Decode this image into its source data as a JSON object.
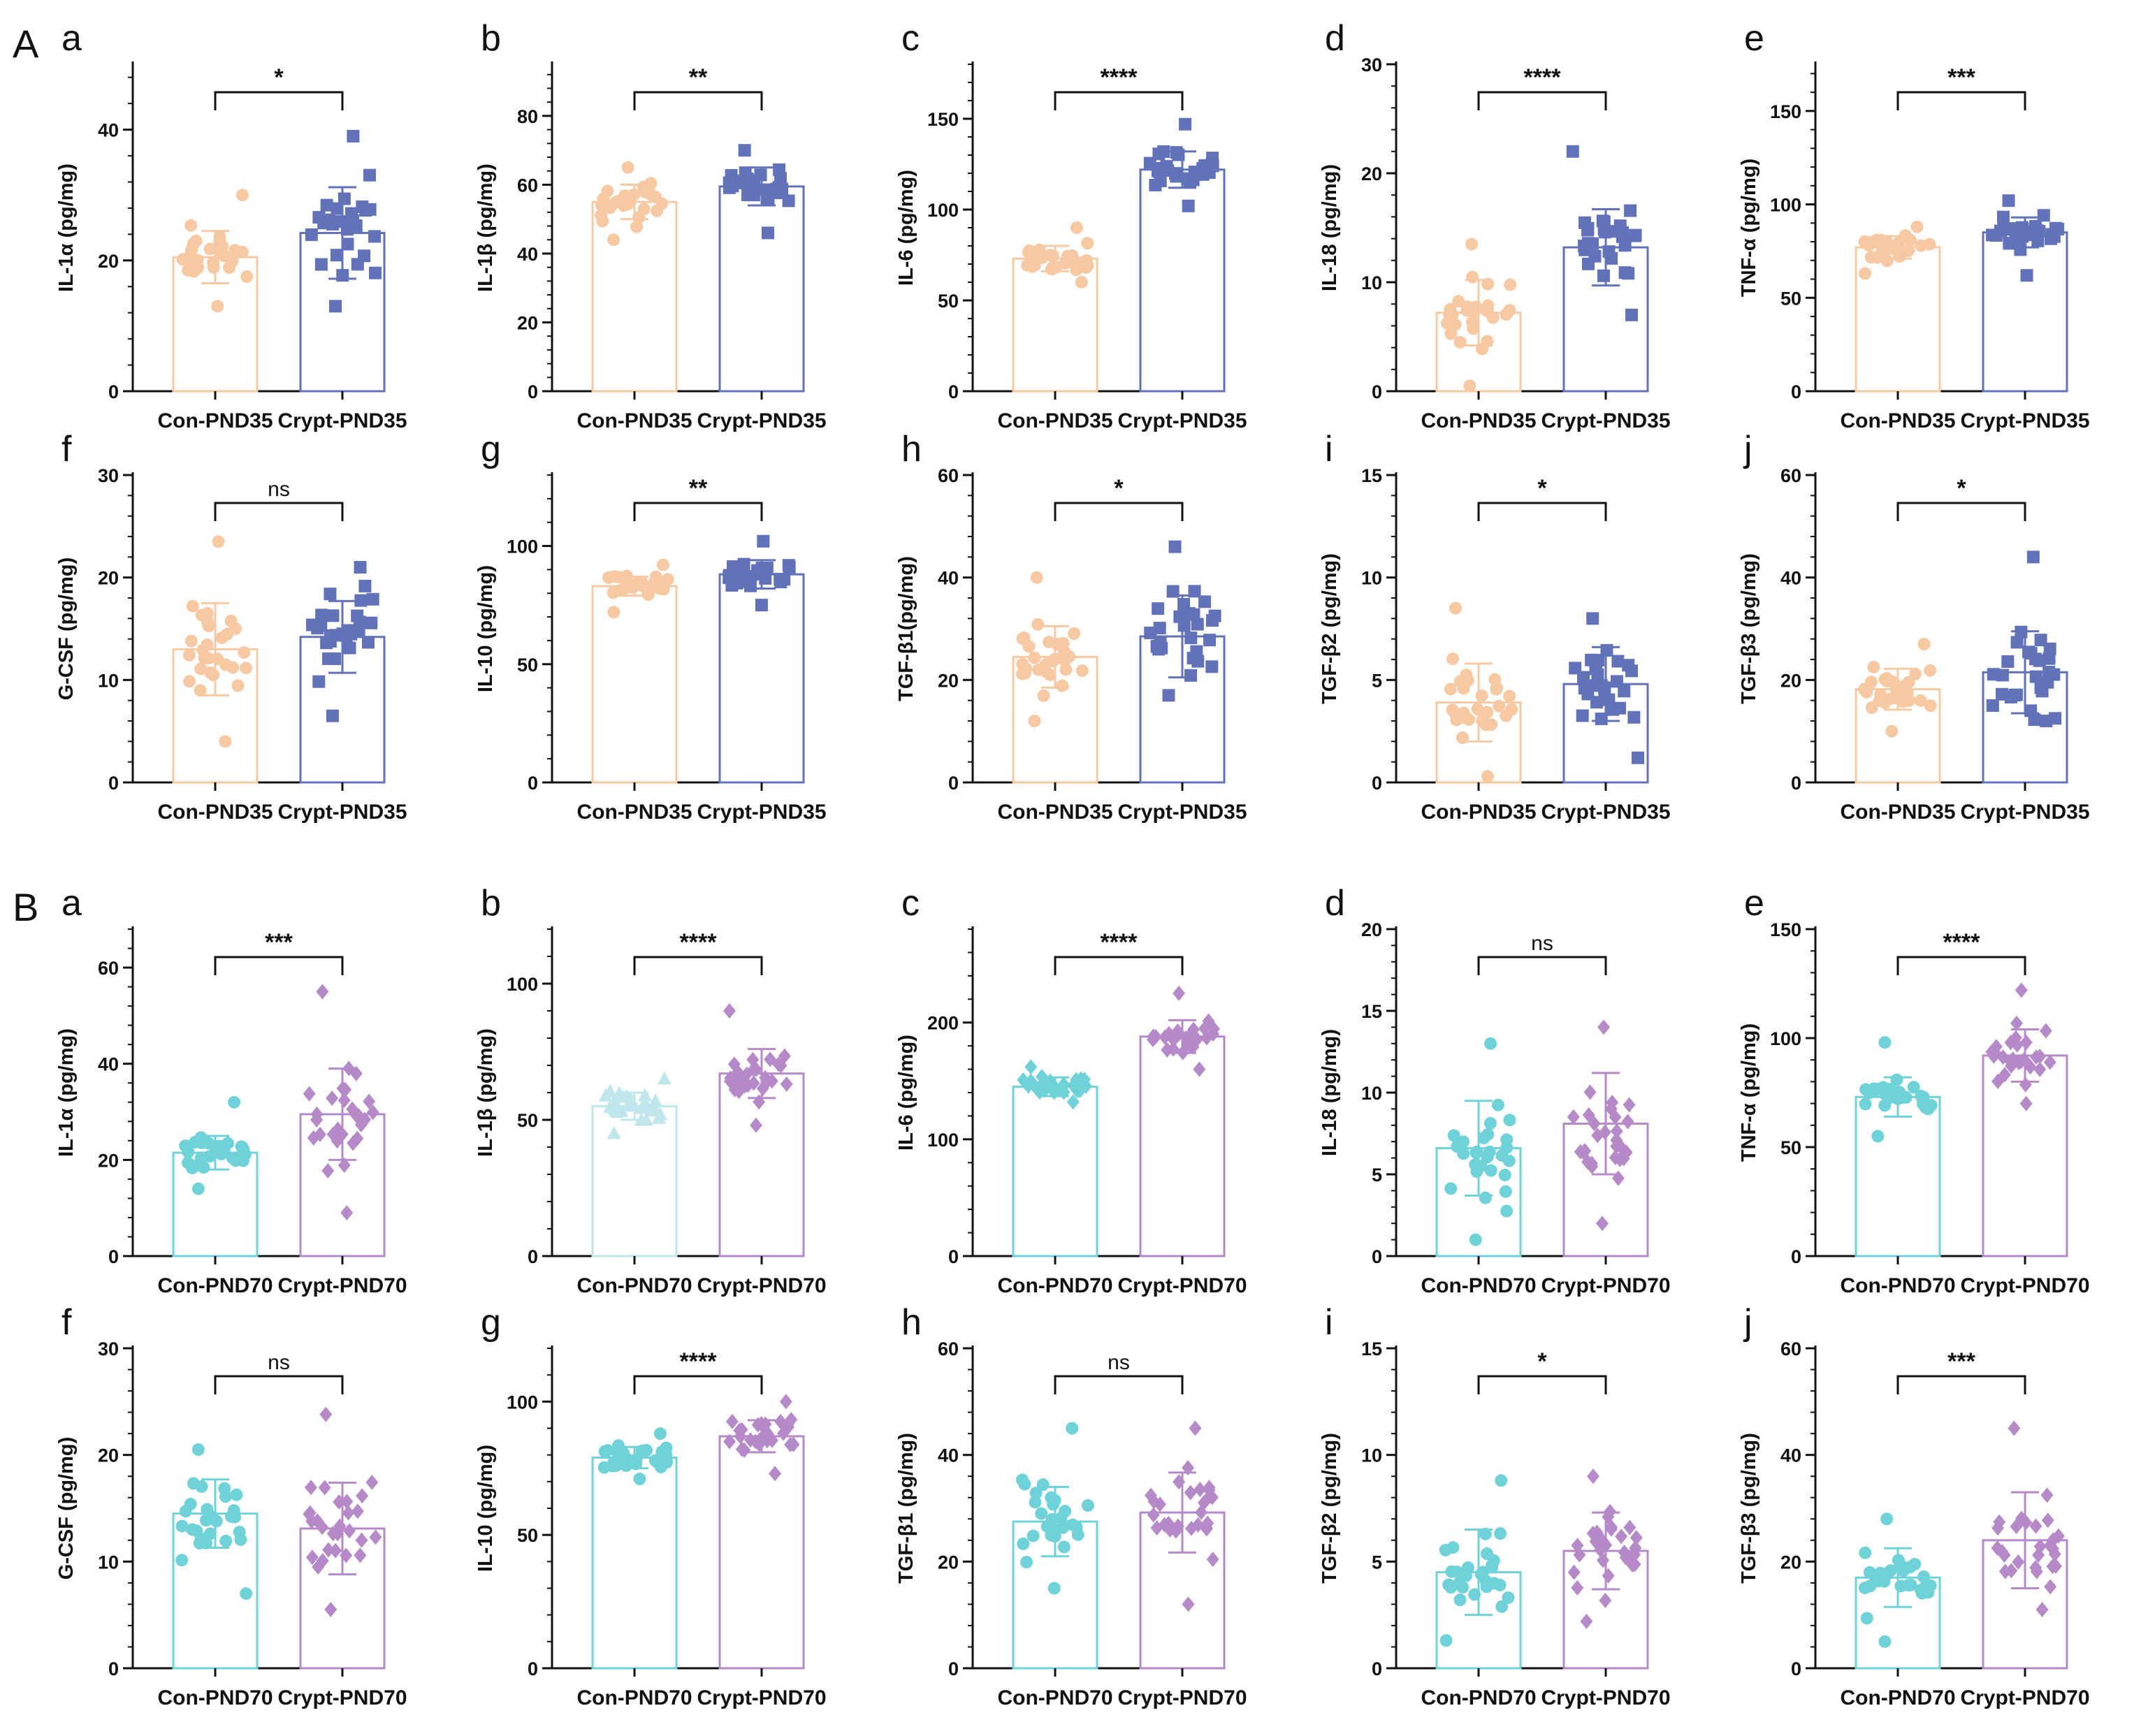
{
  "figure": {
    "sections": [
      {
        "label": "A"
      },
      {
        "label": "B"
      }
    ],
    "colors": {
      "con_pnd35": "#f7c9a3",
      "crypt_pnd35": "#6272b8",
      "con_pnd70": "#6ed2d8",
      "crypt_pnd70": "#b689c8",
      "con_pnd70_light": "#bfe6ea",
      "axis": "#111111"
    },
    "point_counts": {
      "con": 28,
      "crypt": 28
    }
  },
  "chart_data": [
    {
      "section": "A",
      "panel": "a",
      "type": "bar",
      "categories": [
        "Con-PND35",
        "Crypt-PND35"
      ],
      "values": [
        20.5,
        24.2
      ],
      "sd": [
        4.0,
        7.0
      ],
      "ranges": [
        [
          13,
          30
        ],
        [
          13,
          39
        ]
      ],
      "marker": "circle",
      "ylabel": "IL-1α (pg/mg)",
      "ylim": [
        0,
        50
      ],
      "yticks": [
        0,
        20,
        40
      ],
      "significance": "*"
    },
    {
      "section": "A",
      "panel": "b",
      "type": "bar",
      "categories": [
        "Con-PND35",
        "Crypt-PND35"
      ],
      "values": [
        55,
        59.5
      ],
      "sd": [
        5.0,
        5.5
      ],
      "ranges": [
        [
          44,
          65
        ],
        [
          46,
          70
        ]
      ],
      "marker": "square",
      "ylabel": "IL-1β (pg/mg)",
      "ylim": [
        0,
        95
      ],
      "yticks": [
        0,
        20,
        40,
        60,
        80
      ],
      "significance": "**"
    },
    {
      "section": "A",
      "panel": "c",
      "type": "bar",
      "categories": [
        "Con-PND35",
        "Crypt-PND35"
      ],
      "values": [
        73,
        122
      ],
      "sd": [
        7,
        10
      ],
      "ranges": [
        [
          60,
          90
        ],
        [
          102,
          147
        ]
      ],
      "marker": "square",
      "ylabel": "IL-6 (pg/mg)",
      "ylim": [
        0,
        180
      ],
      "yticks": [
        0,
        50,
        100,
        150
      ],
      "significance": "****"
    },
    {
      "section": "A",
      "panel": "d",
      "type": "bar",
      "categories": [
        "Con-PND35",
        "Crypt-PND35"
      ],
      "values": [
        7.2,
        13.2
      ],
      "sd": [
        3.0,
        3.5
      ],
      "ranges": [
        [
          0.5,
          13.5
        ],
        [
          7,
          22
        ]
      ],
      "marker": "square",
      "ylabel": "IL-18 (pg/mg)",
      "ylim": [
        0,
        30
      ],
      "yticks": [
        0,
        10,
        20,
        30
      ],
      "significance": "****"
    },
    {
      "section": "A",
      "panel": "e",
      "type": "bar",
      "categories": [
        "Con-PND35",
        "Crypt-PND35"
      ],
      "values": [
        77,
        85
      ],
      "sd": [
        6,
        8
      ],
      "ranges": [
        [
          63,
          88
        ],
        [
          62,
          102
        ]
      ],
      "marker": "square",
      "ylabel": "TNF-α (pg/mg)",
      "ylim": [
        0,
        175
      ],
      "yticks": [
        0,
        50,
        100,
        150
      ],
      "significance": "***"
    },
    {
      "section": "A",
      "panel": "f",
      "type": "bar",
      "categories": [
        "Con-PND35",
        "Crypt-PND35"
      ],
      "values": [
        13.0,
        14.2
      ],
      "sd": [
        4.5,
        3.5
      ],
      "ranges": [
        [
          4,
          23.5
        ],
        [
          6.5,
          21
        ]
      ],
      "marker": "square",
      "ylabel": "G-CSF (pg/mg)",
      "ylim": [
        0,
        30
      ],
      "yticks": [
        0,
        10,
        20,
        30
      ],
      "significance": "ns"
    },
    {
      "section": "A",
      "panel": "g",
      "type": "bar",
      "categories": [
        "Con-PND35",
        "Crypt-PND35"
      ],
      "values": [
        83,
        88
      ],
      "sd": [
        4,
        6
      ],
      "ranges": [
        [
          72,
          92
        ],
        [
          75,
          102
        ]
      ],
      "marker": "square",
      "ylabel": "IL-10 (pg/mg)",
      "ylim": [
        0,
        130
      ],
      "yticks": [
        0,
        50,
        100
      ],
      "significance": "**"
    },
    {
      "section": "A",
      "panel": "h",
      "type": "bar",
      "categories": [
        "Con-PND35",
        "Crypt-PND35"
      ],
      "values": [
        24.5,
        28.5
      ],
      "sd": [
        6,
        8
      ],
      "ranges": [
        [
          12,
          40
        ],
        [
          17,
          46
        ]
      ],
      "marker": "square",
      "ylabel": "TGF-β1(pg/mg)",
      "ylim": [
        0,
        60
      ],
      "yticks": [
        0,
        20,
        40,
        60
      ],
      "significance": "*"
    },
    {
      "section": "A",
      "panel": "i",
      "type": "bar",
      "categories": [
        "Con-PND35",
        "Crypt-PND35"
      ],
      "values": [
        3.9,
        4.8
      ],
      "sd": [
        1.9,
        1.8
      ],
      "ranges": [
        [
          0.3,
          8.5
        ],
        [
          1.2,
          8
        ]
      ],
      "marker": "square",
      "ylabel": "TGF-β2 (pg/mg)",
      "ylim": [
        0,
        15
      ],
      "yticks": [
        0,
        5,
        10,
        15
      ],
      "significance": "*"
    },
    {
      "section": "A",
      "panel": "j",
      "type": "bar",
      "categories": [
        "Con-PND35",
        "Crypt-PND35"
      ],
      "values": [
        18.2,
        21.5
      ],
      "sd": [
        4,
        8
      ],
      "ranges": [
        [
          10,
          27
        ],
        [
          12,
          44
        ]
      ],
      "marker": "square",
      "ylabel": "TGF-β3 (pg/mg)",
      "ylim": [
        0,
        60
      ],
      "yticks": [
        0,
        20,
        40,
        60
      ],
      "significance": "*"
    },
    {
      "section": "B",
      "panel": "a",
      "type": "bar",
      "categories": [
        "Con-PND70",
        "Crypt-PND70"
      ],
      "values": [
        21.5,
        29.5
      ],
      "sd": [
        3.5,
        9.5
      ],
      "ranges": [
        [
          14,
          32
        ],
        [
          9,
          55
        ]
      ],
      "marker": "circle",
      "ylabel": "IL-1α (pg/mg)",
      "ylim": [
        0,
        68
      ],
      "yticks": [
        0,
        20,
        40,
        60
      ],
      "significance": "***"
    },
    {
      "section": "B",
      "panel": "b",
      "type": "bar",
      "categories": [
        "Con-PND70",
        "Crypt-PND70"
      ],
      "values": [
        55,
        67
      ],
      "sd": [
        5,
        9
      ],
      "ranges": [
        [
          45,
          65
        ],
        [
          48,
          90
        ]
      ],
      "marker": "triangle",
      "ylabel": "IL-1β (pg/mg)",
      "ylim": [
        0,
        120
      ],
      "yticks": [
        0,
        50,
        100
      ],
      "significance": "****"
    },
    {
      "section": "B",
      "panel": "c",
      "type": "bar",
      "categories": [
        "Con-PND70",
        "Crypt-PND70"
      ],
      "values": [
        145,
        188
      ],
      "sd": [
        8,
        14
      ],
      "ranges": [
        [
          132,
          162
        ],
        [
          160,
          225
        ]
      ],
      "marker": "diamond",
      "ylabel": "IL-6 (pg/mg)",
      "ylim": [
        0,
        280
      ],
      "yticks": [
        0,
        100,
        200
      ],
      "significance": "****"
    },
    {
      "section": "B",
      "panel": "d",
      "type": "bar",
      "categories": [
        "Con-PND70",
        "Crypt-PND70"
      ],
      "values": [
        6.6,
        8.1
      ],
      "sd": [
        2.9,
        3.1
      ],
      "ranges": [
        [
          1,
          13
        ],
        [
          2,
          14
        ]
      ],
      "marker": "circle",
      "ylabel": "IL-18 (pg/mg)",
      "ylim": [
        0,
        20
      ],
      "yticks": [
        0,
        5,
        10,
        15,
        20
      ],
      "significance": "ns"
    },
    {
      "section": "B",
      "panel": "e",
      "type": "bar",
      "categories": [
        "Con-PND70",
        "Crypt-PND70"
      ],
      "values": [
        73,
        92
      ],
      "sd": [
        9,
        12
      ],
      "ranges": [
        [
          55,
          98
        ],
        [
          70,
          122
        ]
      ],
      "marker": "circle",
      "ylabel": "TNF-α (pg/mg)",
      "ylim": [
        0,
        150
      ],
      "yticks": [
        0,
        50,
        100,
        150
      ],
      "significance": "****"
    },
    {
      "section": "B",
      "panel": "f",
      "type": "bar",
      "categories": [
        "Con-PND70",
        "Crypt-PND70"
      ],
      "values": [
        14.5,
        13.1
      ],
      "sd": [
        3.2,
        4.3
      ],
      "ranges": [
        [
          7,
          20.5
        ],
        [
          5.5,
          23.8
        ]
      ],
      "marker": "circle",
      "ylabel": "G-CSF (pg/mg)",
      "ylim": [
        0,
        30
      ],
      "yticks": [
        0,
        10,
        20,
        30
      ],
      "significance": "ns"
    },
    {
      "section": "B",
      "panel": "g",
      "type": "bar",
      "categories": [
        "Con-PND70",
        "Crypt-PND70"
      ],
      "values": [
        79,
        87
      ],
      "sd": [
        4,
        6
      ],
      "ranges": [
        [
          71,
          88
        ],
        [
          73,
          100
        ]
      ],
      "marker": "circle",
      "ylabel": "IL-10 (pg/mg)",
      "ylim": [
        0,
        120
      ],
      "yticks": [
        0,
        50,
        100
      ],
      "significance": "****"
    },
    {
      "section": "B",
      "panel": "h",
      "type": "bar",
      "categories": [
        "Con-PND70",
        "Crypt-PND70"
      ],
      "values": [
        27.5,
        29.2
      ],
      "sd": [
        6.5,
        7.5
      ],
      "ranges": [
        [
          15,
          45
        ],
        [
          12,
          45
        ]
      ],
      "marker": "circle",
      "ylabel": "TGF-β1 (pg/mg)",
      "ylim": [
        0,
        60
      ],
      "yticks": [
        0,
        20,
        40,
        60
      ],
      "significance": "ns"
    },
    {
      "section": "B",
      "panel": "i",
      "type": "bar",
      "categories": [
        "Con-PND70",
        "Crypt-PND70"
      ],
      "values": [
        4.5,
        5.5
      ],
      "sd": [
        2.0,
        1.8
      ],
      "ranges": [
        [
          1.3,
          8.8
        ],
        [
          2.2,
          9
        ]
      ],
      "marker": "circle",
      "ylabel": "TGF-β2 (pg/mg)",
      "ylim": [
        0,
        15
      ],
      "yticks": [
        0,
        5,
        10,
        15
      ],
      "significance": "*"
    },
    {
      "section": "B",
      "panel": "j",
      "type": "bar",
      "categories": [
        "Con-PND70",
        "Crypt-PND70"
      ],
      "values": [
        17,
        24
      ],
      "sd": [
        5.5,
        9.0
      ],
      "ranges": [
        [
          5,
          28
        ],
        [
          11,
          45
        ]
      ],
      "marker": "circle",
      "ylabel": "TGF-β3 (pg/mg)",
      "ylim": [
        0,
        60
      ],
      "yticks": [
        0,
        20,
        40,
        60
      ],
      "significance": "***"
    }
  ]
}
